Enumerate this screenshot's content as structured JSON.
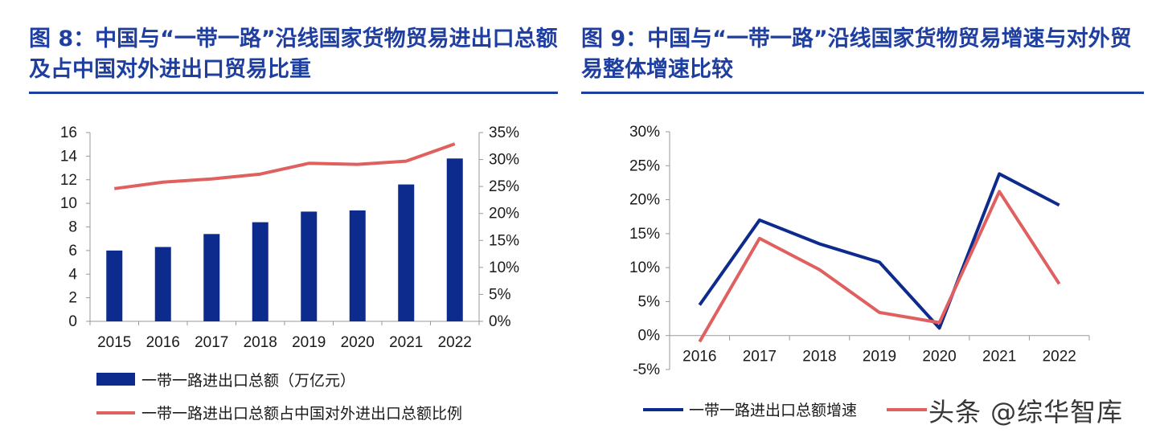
{
  "left": {
    "title": "图 8：中国与“一带一路”沿线国家货物贸易进出口总额及占中国对外进出口贸易比重"
  },
  "right": {
    "title": "图 9：中国与“一带一路”沿线国家货物贸易增速与对外贸易整体增速比较"
  },
  "watermark": "头条 @综华智库",
  "colors": {
    "title": "#1f3fa0",
    "bar": "#0d2b8c",
    "line_red": "#e06060",
    "line_blue": "#0d2b8c"
  },
  "chart_data": [
    {
      "type": "bar",
      "categories": [
        "2015",
        "2016",
        "2017",
        "2018",
        "2019",
        "2020",
        "2021",
        "2022"
      ],
      "y_left": {
        "ticks": [
          "0",
          "2",
          "4",
          "6",
          "8",
          "10",
          "12",
          "14",
          "16"
        ],
        "ylim": [
          0,
          16
        ]
      },
      "y_right": {
        "ticks": [
          "0%",
          "5%",
          "10%",
          "15%",
          "20%",
          "25%",
          "30%",
          "35%"
        ],
        "ylim": [
          0,
          35
        ]
      },
      "series": [
        {
          "name": "一带一路进出口总额（万亿元）",
          "type": "bar",
          "axis": "left",
          "values": [
            6.0,
            6.3,
            7.4,
            8.4,
            9.3,
            9.4,
            11.6,
            13.8
          ]
        },
        {
          "name": "一带一路进出口总额占中国对外进出口总额比例",
          "type": "line",
          "axis": "right",
          "values": [
            24.6,
            25.8,
            26.4,
            27.3,
            29.3,
            29.1,
            29.7,
            32.9
          ]
        }
      ],
      "legend_position": "bottom"
    },
    {
      "type": "line",
      "categories": [
        "2016",
        "2017",
        "2018",
        "2019",
        "2020",
        "2021",
        "2022"
      ],
      "y_ticks": [
        "-5%",
        "0%",
        "5%",
        "10%",
        "15%",
        "20%",
        "25%",
        "30%"
      ],
      "ylim": [
        -5,
        30
      ],
      "series": [
        {
          "name": "一带一路进出口总额增速",
          "values": [
            4.5,
            17.0,
            13.5,
            10.8,
            1.1,
            23.8,
            19.2
          ]
        },
        {
          "name": "",
          "values": [
            -0.9,
            14.3,
            9.7,
            3.4,
            1.9,
            21.2,
            7.6
          ]
        }
      ],
      "legend_position": "bottom"
    }
  ]
}
